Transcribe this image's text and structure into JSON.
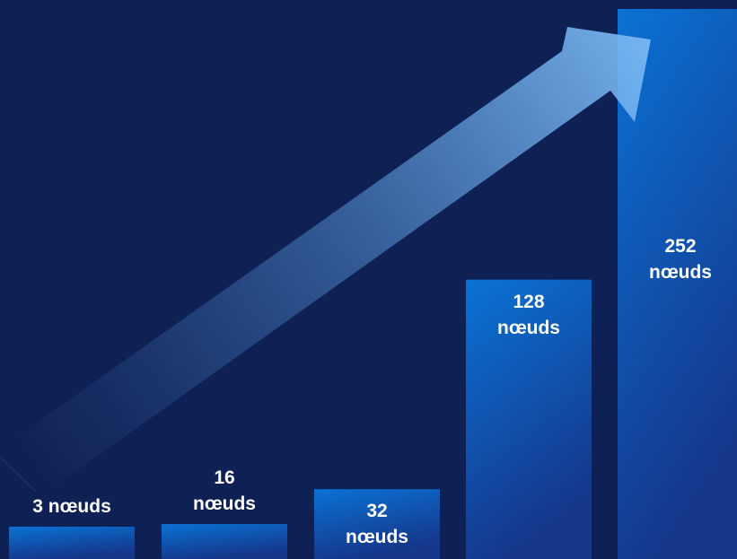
{
  "chart_data": {
    "type": "bar",
    "title": "",
    "xlabel": "",
    "ylabel": "",
    "unit": "nœuds",
    "categories": [
      "3 nœuds",
      "16 nœuds",
      "32 nœuds",
      "128 nœuds",
      "252 nœuds"
    ],
    "values": [
      3,
      16,
      32,
      128,
      252
    ],
    "data_labels": [
      [
        "3 nœuds"
      ],
      [
        "16",
        "nœuds"
      ],
      [
        "32",
        "nœuds"
      ],
      [
        "128",
        "nœuds"
      ],
      [
        "252",
        "nœuds"
      ]
    ],
    "ylim": [
      0,
      252
    ],
    "grid": false,
    "legend": "none",
    "decoration": "rising arrow spanning from the first bar to the last bar",
    "colors": {
      "background": "#0f2154",
      "bar_top": "#0a72d4",
      "bar_bottom": "#15368a",
      "arrow_head": "#6fb2ef",
      "label_text": "#ffffff"
    }
  }
}
